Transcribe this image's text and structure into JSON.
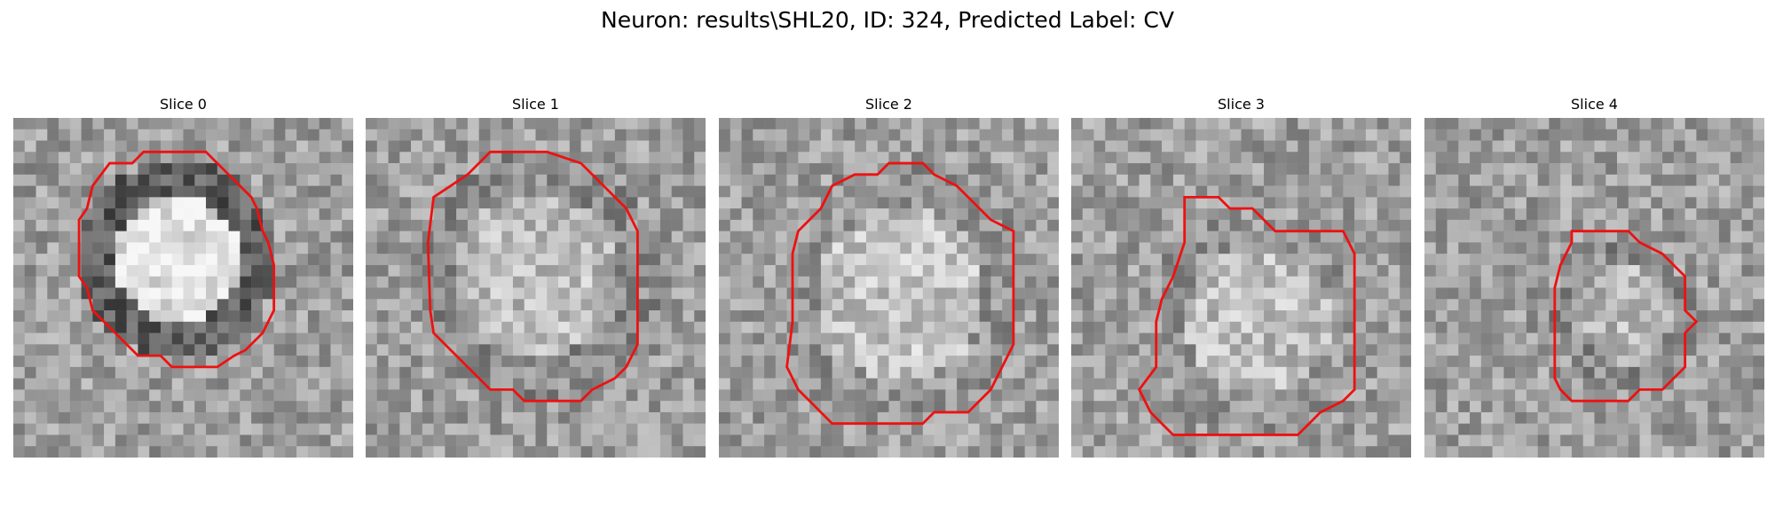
{
  "figure": {
    "title": "Neuron: results\\SHL20, ID: 324, Predicted Label: CV"
  },
  "panels": [
    {
      "title": "Slice 0",
      "seed": 11,
      "ring_darkness": 0.85,
      "center_brightness": 0.78
    },
    {
      "title": "Slice 1",
      "seed": 23,
      "ring_darkness": 0.6,
      "center_brightness": 0.62
    },
    {
      "title": "Slice 2",
      "seed": 37,
      "ring_darkness": 0.55,
      "center_brightness": 0.64
    },
    {
      "title": "Slice 3",
      "seed": 41,
      "ring_darkness": 0.55,
      "center_brightness": 0.62
    },
    {
      "title": "Slice 4",
      "seed": 53,
      "ring_darkness": 0.6,
      "center_brightness": 0.6
    }
  ],
  "colors": {
    "contour": "#ee1111",
    "background": "#ffffff"
  }
}
